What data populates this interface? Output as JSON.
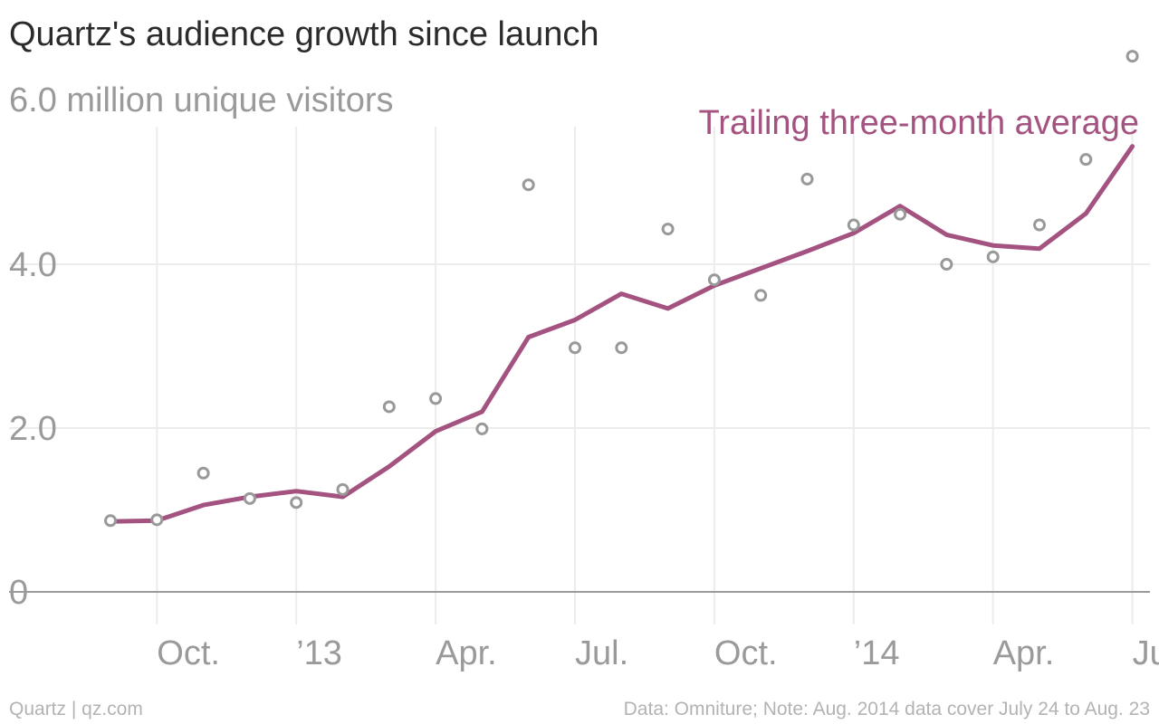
{
  "title": "Quartz's audience growth since launch",
  "footer_left": "Quartz | qz.com",
  "footer_right": "Data: Omniture; Note: Aug. 2014 data cover July 24 to Aug. 23",
  "chart_data": {
    "type": "line",
    "unit_label": "6.0 million unique visitors",
    "ylim": [
      0,
      6.5
    ],
    "yticks": [
      {
        "value": 0,
        "label": "0"
      },
      {
        "value": 2,
        "label": "2.0"
      },
      {
        "value": 4,
        "label": "4.0"
      }
    ],
    "x": [
      "2012-09",
      "2012-10",
      "2012-11",
      "2012-12",
      "2013-01",
      "2013-02",
      "2013-03",
      "2013-04",
      "2013-05",
      "2013-06",
      "2013-07",
      "2013-08",
      "2013-09",
      "2013-10",
      "2013-11",
      "2013-12",
      "2014-01",
      "2014-02",
      "2014-03",
      "2014-04",
      "2014-05",
      "2014-06",
      "2014-07",
      "2014-08"
    ],
    "xticks": [
      {
        "x": "2012-10",
        "label": "Oct."
      },
      {
        "x": "2013-01",
        "label": "’13"
      },
      {
        "x": "2013-04",
        "label": "Apr."
      },
      {
        "x": "2013-07",
        "label": "Jul."
      },
      {
        "x": "2013-10",
        "label": "Oct."
      },
      {
        "x": "2014-01",
        "label": "’14"
      },
      {
        "x": "2014-04",
        "label": "Apr."
      },
      {
        "x": "2014-07",
        "label": "Jul."
      }
    ],
    "grid": true,
    "series": [
      {
        "kind": "points",
        "color": "#999999",
        "values": [
          0.87,
          0.88,
          1.45,
          1.14,
          1.09,
          1.25,
          2.26,
          2.36,
          1.99,
          4.97,
          2.98,
          2.98,
          4.43,
          3.81,
          3.62,
          5.04,
          4.48,
          4.61,
          4.0,
          4.09,
          4.48,
          5.28,
          6.54,
          null
        ]
      },
      {
        "kind": "line",
        "name": "Trailing three-month average",
        "color": "#a4527f",
        "values": [
          0.86,
          0.87,
          1.06,
          1.16,
          1.23,
          1.16,
          1.53,
          1.96,
          2.2,
          3.11,
          3.32,
          3.64,
          3.46,
          3.74,
          3.95,
          4.16,
          4.38,
          4.71,
          4.36,
          4.23,
          4.19,
          4.62,
          5.44,
          null
        ]
      }
    ]
  }
}
